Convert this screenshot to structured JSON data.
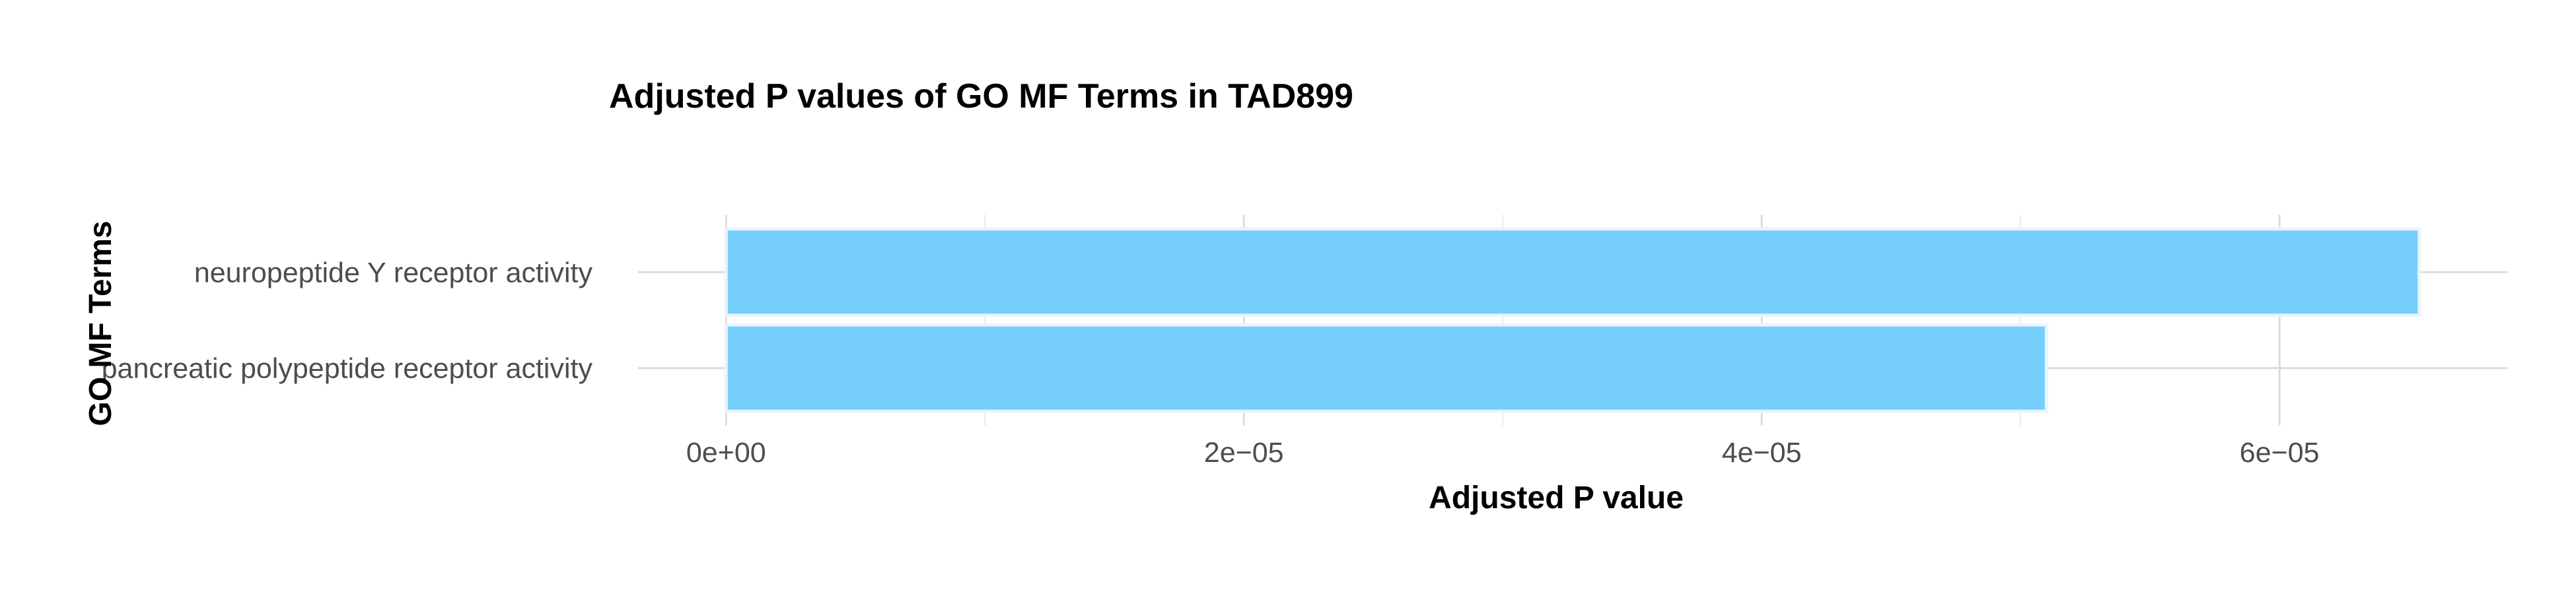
{
  "chart_data": {
    "type": "bar",
    "orientation": "horizontal",
    "title": "Adjusted P values of GO MF Terms in TAD899",
    "xlabel": "Adjusted P value",
    "ylabel": "GO MF Terms",
    "categories": [
      "neuropeptide Y receptor activity",
      "pancreatic polypeptide receptor activity"
    ],
    "values": [
      6.54e-05,
      5.1e-05
    ],
    "xlim": [
      -3.4e-06,
      6.88e-05
    ],
    "x_ticks": [
      0,
      2e-05,
      4e-05,
      6e-05
    ],
    "x_tick_labels": [
      "0e+00",
      "2e−05",
      "4e−05",
      "6e−05"
    ],
    "grid": true,
    "bar_color": "#75CFFA",
    "bar_border_color": "#E8F5FD"
  }
}
